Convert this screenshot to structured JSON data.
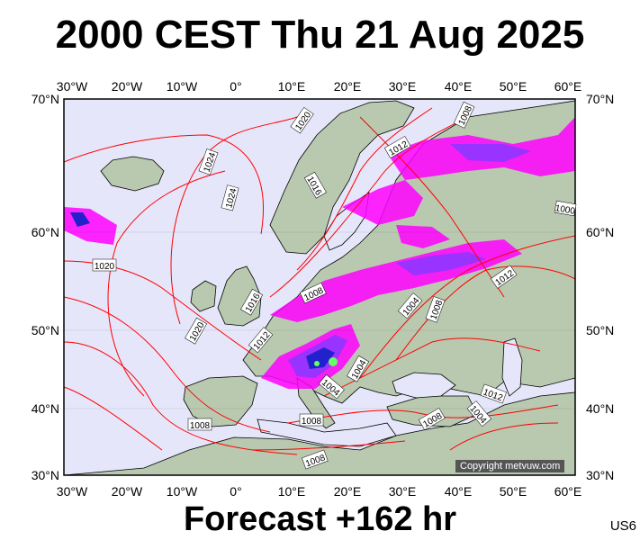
{
  "title": "2000 CEST Thu 21 Aug 2025",
  "footer": "Forecast +162 hr",
  "code": "US6",
  "copyright": "Copyright metvuw.com",
  "axes": {
    "lon_labels": [
      "30°W",
      "20°W",
      "10°W",
      "0°",
      "10°E",
      "20°E",
      "30°E",
      "40°E",
      "50°E",
      "60°E"
    ],
    "lat_labels": [
      "70°N",
      "60°N",
      "50°N",
      "40°N",
      "30°N"
    ]
  },
  "isobar_labels": [
    "1020",
    "1024",
    "1024",
    "1016",
    "1012",
    "1008",
    "1020",
    "1016",
    "1012",
    "1020",
    "1008",
    "1004",
    "1008",
    "1012",
    "1004",
    "1008",
    "1012",
    "1004",
    "1008",
    "1008",
    "1004",
    "1008",
    "1000"
  ],
  "colors": {
    "ocean": "#e6e6fa",
    "land": "#b8c9b0",
    "isobar": "#ff0000",
    "precip_light": "#ff00ff",
    "precip_mid": "#9933ff",
    "precip_heavy": "#2222cc"
  }
}
